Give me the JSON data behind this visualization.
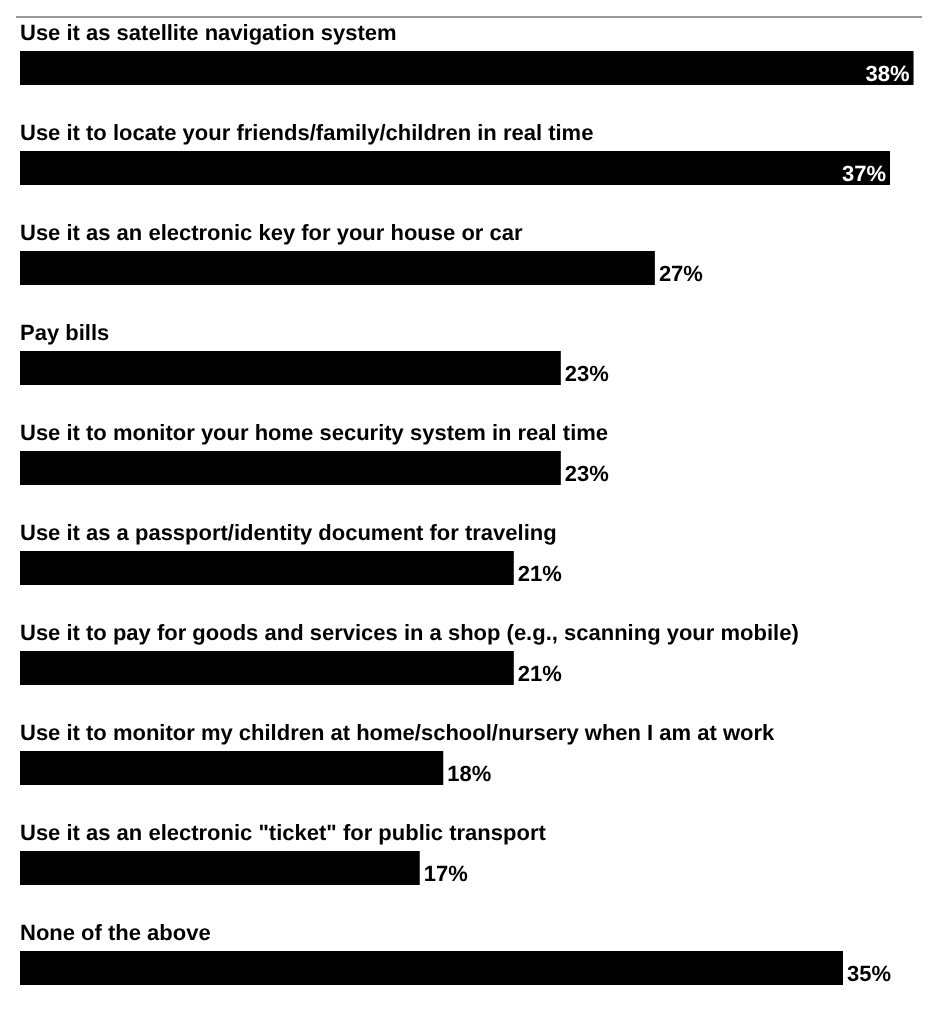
{
  "chart_data": {
    "type": "bar",
    "orientation": "horizontal",
    "color": "#000000",
    "categories": [
      "Use it as satellite navigation system",
      "Use it to locate your friends/family/children in real time",
      "Use it as an electronic key for your house or car",
      "Pay bills",
      "Use it to monitor your home security system in real time",
      "Use it as a passport/identity document for traveling",
      "Use it to pay for goods and services in a shop (e.g., scanning your mobile)",
      "Use it to monitor my children at home/school/nursery when I am at work",
      "Use it as an electronic \"ticket\" for public transport",
      "None of the above"
    ],
    "values": [
      38,
      37,
      27,
      23,
      23,
      21,
      21,
      18,
      17,
      35
    ],
    "value_labels": [
      "38%",
      "37%",
      "27%",
      "23%",
      "23%",
      "21%",
      "21%",
      "18%",
      "17%",
      "35%"
    ],
    "legend": false
  }
}
